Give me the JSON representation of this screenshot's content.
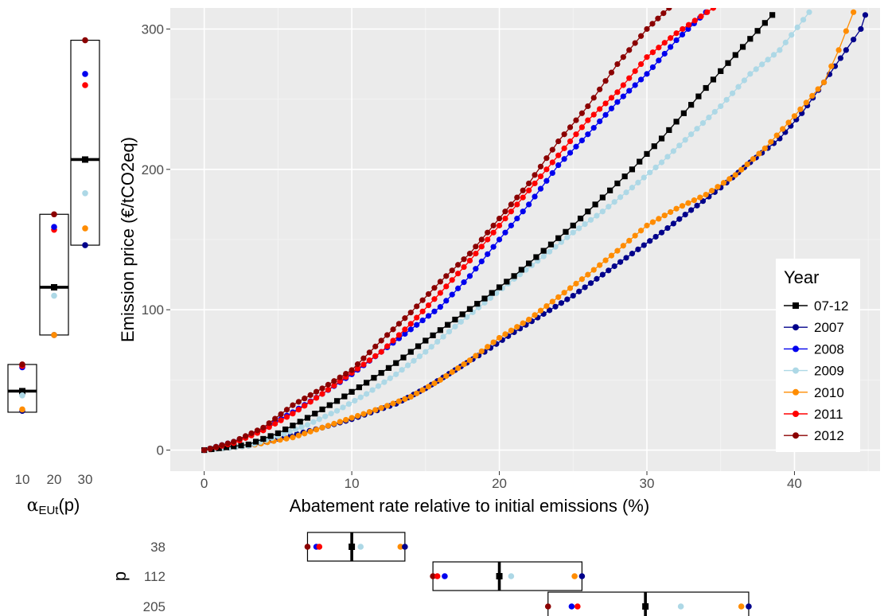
{
  "chart_data": {
    "type": "line",
    "xlabel": "Abatement rate relative to initial emissions (%)",
    "ylabel": "Emission price (€/tCO2eq)",
    "xlim": [
      -2.3,
      45.8
    ],
    "ylim": [
      -15,
      315
    ],
    "x_ticks": [
      0,
      10,
      20,
      30,
      40
    ],
    "y_ticks": [
      0,
      100,
      200,
      300
    ],
    "grid": true,
    "legend_title": "Year",
    "legend_position": "right",
    "series": [
      {
        "name": "07-12",
        "color": "#000000",
        "marker": "square",
        "points": [
          [
            0,
            0
          ],
          [
            3,
            4
          ],
          [
            5,
            12
          ],
          [
            7,
            23
          ],
          [
            9,
            35
          ],
          [
            11,
            48
          ],
          [
            13,
            62
          ],
          [
            15,
            78
          ],
          [
            17,
            93
          ],
          [
            19,
            108
          ],
          [
            21,
            124
          ],
          [
            23,
            142
          ],
          [
            25,
            160
          ],
          [
            27,
            180
          ],
          [
            29,
            200
          ],
          [
            31,
            222
          ],
          [
            33,
            246
          ],
          [
            35,
            270
          ],
          [
            37,
            293
          ],
          [
            38.5,
            310
          ]
        ]
      },
      {
        "name": "2007",
        "color": "#00008B",
        "marker": "circle",
        "points": [
          [
            0,
            0
          ],
          [
            3,
            3
          ],
          [
            5,
            8
          ],
          [
            8,
            16
          ],
          [
            10,
            22
          ],
          [
            13,
            33
          ],
          [
            15,
            44
          ],
          [
            17,
            57
          ],
          [
            19,
            70
          ],
          [
            21,
            84
          ],
          [
            23,
            97
          ],
          [
            25,
            110
          ],
          [
            27,
            125
          ],
          [
            29,
            140
          ],
          [
            31,
            155
          ],
          [
            33,
            171
          ],
          [
            35,
            187
          ],
          [
            37,
            205
          ],
          [
            39,
            222
          ],
          [
            40.5,
            240
          ],
          [
            42,
            262
          ],
          [
            43.5,
            285
          ],
          [
            44.5,
            300
          ],
          [
            44.8,
            310
          ]
        ]
      },
      {
        "name": "2008",
        "color": "#0000EE",
        "marker": "circle",
        "points": [
          [
            0,
            0
          ],
          [
            2,
            6
          ],
          [
            4,
            15
          ],
          [
            6,
            27
          ],
          [
            8,
            40
          ],
          [
            10,
            54
          ],
          [
            12,
            70
          ],
          [
            14,
            86
          ],
          [
            16,
            102
          ],
          [
            18,
            124
          ],
          [
            20,
            150
          ],
          [
            22,
            175
          ],
          [
            24,
            203
          ],
          [
            26,
            225
          ],
          [
            28,
            248
          ],
          [
            30,
            268
          ],
          [
            32,
            292
          ],
          [
            34,
            312
          ]
        ]
      },
      {
        "name": "2009",
        "color": "#ADD8E6",
        "marker": "circle",
        "points": [
          [
            0,
            0
          ],
          [
            3,
            3
          ],
          [
            5,
            10
          ],
          [
            7,
            18
          ],
          [
            9,
            28
          ],
          [
            11,
            40
          ],
          [
            13,
            54
          ],
          [
            15,
            70
          ],
          [
            17,
            88
          ],
          [
            19,
            105
          ],
          [
            21,
            122
          ],
          [
            23,
            138
          ],
          [
            25,
            155
          ],
          [
            27,
            170
          ],
          [
            29,
            187
          ],
          [
            31,
            205
          ],
          [
            33,
            225
          ],
          [
            35,
            245
          ],
          [
            37,
            268
          ],
          [
            39,
            285
          ],
          [
            41,
            312
          ]
        ]
      },
      {
        "name": "2010",
        "color": "#FF8C00",
        "marker": "circle",
        "points": [
          [
            0,
            0
          ],
          [
            3,
            3
          ],
          [
            6,
            9
          ],
          [
            8,
            16
          ],
          [
            10,
            23
          ],
          [
            12,
            30
          ],
          [
            14,
            38
          ],
          [
            16,
            50
          ],
          [
            18,
            64
          ],
          [
            20,
            80
          ],
          [
            22,
            93
          ],
          [
            24,
            109
          ],
          [
            26,
            125
          ],
          [
            28,
            142
          ],
          [
            30,
            160
          ],
          [
            32,
            172
          ],
          [
            34,
            182
          ],
          [
            36,
            196
          ],
          [
            38,
            215
          ],
          [
            40,
            238
          ],
          [
            42,
            262
          ],
          [
            43,
            285
          ],
          [
            44,
            312
          ]
        ]
      },
      {
        "name": "2011",
        "color": "#FF0000",
        "marker": "circle",
        "points": [
          [
            0,
            0
          ],
          [
            2,
            5
          ],
          [
            4,
            14
          ],
          [
            6,
            26
          ],
          [
            8,
            40
          ],
          [
            10,
            55
          ],
          [
            12,
            70
          ],
          [
            14,
            90
          ],
          [
            16,
            112
          ],
          [
            18,
            135
          ],
          [
            20,
            160
          ],
          [
            22,
            185
          ],
          [
            24,
            210
          ],
          [
            26,
            235
          ],
          [
            28,
            255
          ],
          [
            30,
            280
          ],
          [
            32,
            297
          ],
          [
            34.5,
            315
          ]
        ]
      },
      {
        "name": "2012",
        "color": "#8B0000",
        "marker": "circle",
        "points": [
          [
            0,
            0
          ],
          [
            2,
            6
          ],
          [
            4,
            16
          ],
          [
            6,
            32
          ],
          [
            8,
            44
          ],
          [
            10,
            57
          ],
          [
            12,
            78
          ],
          [
            14,
            98
          ],
          [
            16,
            120
          ],
          [
            18,
            140
          ],
          [
            20,
            165
          ],
          [
            22,
            190
          ],
          [
            24,
            220
          ],
          [
            26,
            245
          ],
          [
            28,
            275
          ],
          [
            30,
            300
          ],
          [
            31.5,
            315
          ]
        ]
      }
    ],
    "left_panel": {
      "xlabel": "αEUt(p)",
      "xlabel_main": "α",
      "xlabel_sub": "EUt",
      "xlabel_tail": "(p)",
      "x_ticks": [
        "10",
        "20",
        "30"
      ],
      "groups": [
        {
          "x_label": "10",
          "box_low": 27,
          "box_high": 61,
          "median": 42,
          "mean": 42,
          "points": [
            {
              "series": "2007",
              "value": 28
            },
            {
              "series": "2010",
              "value": 29
            },
            {
              "series": "2009",
              "value": 39
            },
            {
              "series": "2008",
              "value": 59
            },
            {
              "series": "2011",
              "value": 60
            },
            {
              "series": "2012",
              "value": 61
            }
          ]
        },
        {
          "x_label": "20",
          "box_low": 82,
          "box_high": 168,
          "median": 116,
          "mean": 116,
          "points": [
            {
              "series": "2007",
              "value": 82
            },
            {
              "series": "2010",
              "value": 82
            },
            {
              "series": "2009",
              "value": 110
            },
            {
              "series": "2011",
              "value": 157
            },
            {
              "series": "2008",
              "value": 159
            },
            {
              "series": "2012",
              "value": 168
            }
          ]
        },
        {
          "x_label": "30",
          "box_low": 146,
          "box_high": 292,
          "median": 207,
          "mean": 207,
          "points": [
            {
              "series": "2007",
              "value": 146
            },
            {
              "series": "2010",
              "value": 158
            },
            {
              "series": "2009",
              "value": 183
            },
            {
              "series": "2011",
              "value": 260
            },
            {
              "series": "2008",
              "value": 268
            },
            {
              "series": "2012",
              "value": 292
            }
          ]
        }
      ]
    },
    "bottom_panel": {
      "ylabel": "p",
      "groups": [
        {
          "label": "38",
          "box_low": 7,
          "box_high": 13.6,
          "median": 10,
          "mean": 10,
          "points": [
            {
              "series": "2012",
              "value": 7.0
            },
            {
              "series": "2008",
              "value": 7.6
            },
            {
              "series": "2011",
              "value": 7.8
            },
            {
              "series": "2009",
              "value": 10.6
            },
            {
              "series": "2010",
              "value": 13.3
            },
            {
              "series": "2007",
              "value": 13.6
            }
          ]
        },
        {
          "label": "112",
          "box_low": 15.5,
          "box_high": 25.6,
          "median": 20,
          "mean": 20,
          "points": [
            {
              "series": "2012",
              "value": 15.5
            },
            {
              "series": "2011",
              "value": 15.8
            },
            {
              "series": "2008",
              "value": 16.3
            },
            {
              "series": "2009",
              "value": 20.8
            },
            {
              "series": "2010",
              "value": 25.1
            },
            {
              "series": "2007",
              "value": 25.6
            }
          ]
        },
        {
          "label": "205",
          "box_low": 23.3,
          "box_high": 36.9,
          "median": 29.9,
          "mean": 29.9,
          "points": [
            {
              "series": "2012",
              "value": 23.3
            },
            {
              "series": "2008",
              "value": 24.9
            },
            {
              "series": "2011",
              "value": 25.3
            },
            {
              "series": "2009",
              "value": 32.3
            },
            {
              "series": "2010",
              "value": 36.4
            },
            {
              "series": "2007",
              "value": 36.9
            }
          ]
        }
      ]
    }
  }
}
